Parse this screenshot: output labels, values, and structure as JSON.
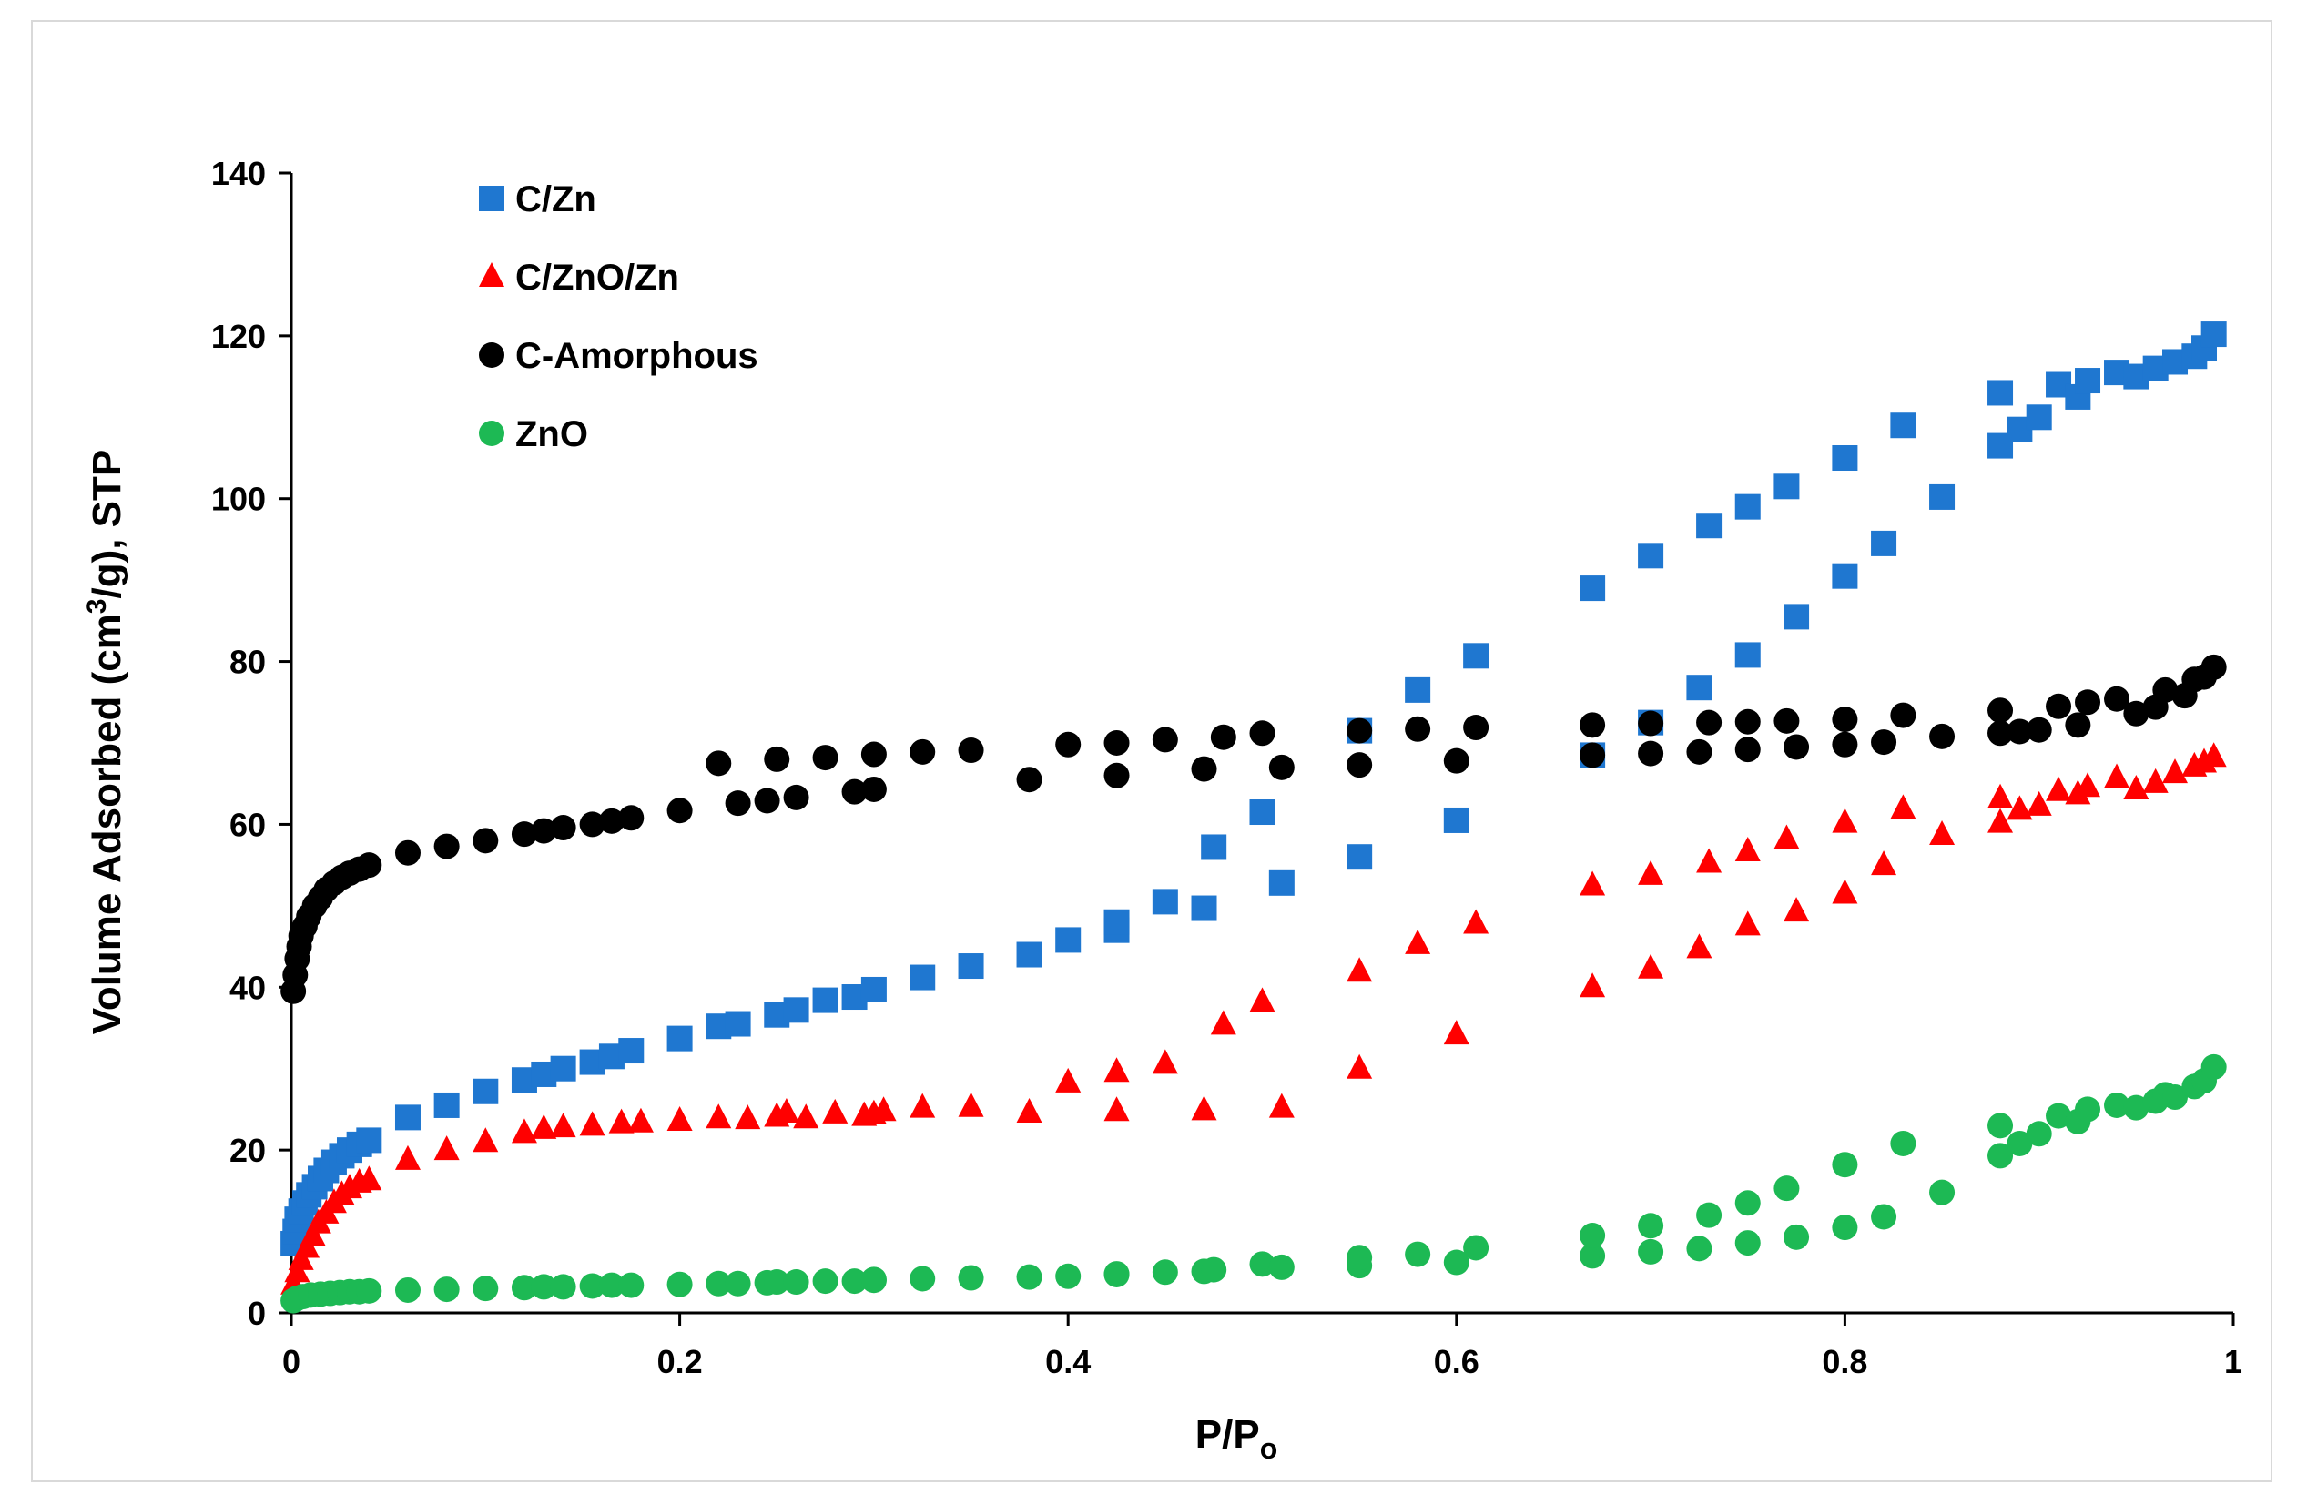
{
  "chart_data": {
    "type": "scatter",
    "title": "",
    "xlabel": {
      "main": "P/P",
      "sub": "o"
    },
    "ylabel": {
      "pre": "Volume Adsorbed (cm",
      "sup": "3",
      "post": "/g), STP"
    },
    "xlim": [
      0,
      1
    ],
    "ylim": [
      0,
      140
    ],
    "xticks": [
      0,
      0.2,
      0.4,
      0.6,
      0.8,
      1
    ],
    "xtick_labels": [
      "0",
      "0.2",
      "0.4",
      "0.6",
      "0.8",
      "1"
    ],
    "yticks": [
      0,
      20,
      40,
      60,
      80,
      100,
      120,
      140
    ],
    "ytick_labels": [
      "0",
      "20",
      "40",
      "60",
      "80",
      "100",
      "120",
      "140"
    ],
    "grid": false,
    "legend_position": "top-left",
    "series": [
      {
        "name": "C/Zn",
        "marker": "square",
        "color": "#1f77d0",
        "points": [
          [
            0.001,
            8.5
          ],
          [
            0.002,
            10
          ],
          [
            0.003,
            11.5
          ],
          [
            0.005,
            12.5
          ],
          [
            0.007,
            13.5
          ],
          [
            0.009,
            14.5
          ],
          [
            0.012,
            15.5
          ],
          [
            0.015,
            16.5
          ],
          [
            0.018,
            17.5
          ],
          [
            0.022,
            18.5
          ],
          [
            0.026,
            19.3
          ],
          [
            0.03,
            20
          ],
          [
            0.035,
            20.7
          ],
          [
            0.04,
            21.2
          ],
          [
            0.06,
            24
          ],
          [
            0.08,
            25.5
          ],
          [
            0.1,
            27.2
          ],
          [
            0.12,
            28.6
          ],
          [
            0.13,
            29.3
          ],
          [
            0.14,
            30
          ],
          [
            0.155,
            30.8
          ],
          [
            0.165,
            31.5
          ],
          [
            0.175,
            32.2
          ],
          [
            0.2,
            33.7
          ],
          [
            0.22,
            35.2
          ],
          [
            0.23,
            35.5
          ],
          [
            0.25,
            36.6
          ],
          [
            0.26,
            37.2
          ],
          [
            0.275,
            38.4
          ],
          [
            0.29,
            38.8
          ],
          [
            0.3,
            39.7
          ],
          [
            0.325,
            41.2
          ],
          [
            0.35,
            42.6
          ],
          [
            0.38,
            44
          ],
          [
            0.4,
            45.8
          ],
          [
            0.425,
            47
          ],
          [
            0.425,
            48
          ],
          [
            0.45,
            50.5
          ],
          [
            0.47,
            49.7
          ],
          [
            0.475,
            57.2
          ],
          [
            0.5,
            61.5
          ],
          [
            0.51,
            52.8
          ],
          [
            0.55,
            56
          ],
          [
            0.55,
            71.5
          ],
          [
            0.58,
            76.5
          ],
          [
            0.6,
            60.5
          ],
          [
            0.61,
            80.7
          ],
          [
            0.67,
            68.5
          ],
          [
            0.67,
            89
          ],
          [
            0.7,
            72.5
          ],
          [
            0.7,
            93
          ],
          [
            0.725,
            76.8
          ],
          [
            0.73,
            96.7
          ],
          [
            0.75,
            80.8
          ],
          [
            0.75,
            99
          ],
          [
            0.77,
            101.5
          ],
          [
            0.775,
            85.5
          ],
          [
            0.8,
            90.5
          ],
          [
            0.8,
            105
          ],
          [
            0.82,
            94.5
          ],
          [
            0.83,
            109
          ],
          [
            0.85,
            100.2
          ],
          [
            0.88,
            106.5
          ],
          [
            0.88,
            113
          ],
          [
            0.89,
            108.5
          ],
          [
            0.9,
            110
          ],
          [
            0.91,
            114
          ],
          [
            0.92,
            112.5
          ],
          [
            0.925,
            114.5
          ],
          [
            0.94,
            115.5
          ],
          [
            0.95,
            115
          ],
          [
            0.96,
            116
          ],
          [
            0.97,
            116.8
          ],
          [
            0.98,
            117.5
          ],
          [
            0.985,
            118.5
          ],
          [
            0.99,
            120.2
          ]
        ]
      },
      {
        "name": "C/ZnO/Zn",
        "marker": "triangle",
        "color": "#ff0000",
        "points": [
          [
            0.001,
            3.5
          ],
          [
            0.003,
            5
          ],
          [
            0.005,
            6.5
          ],
          [
            0.008,
            8
          ],
          [
            0.011,
            9.5
          ],
          [
            0.014,
            11
          ],
          [
            0.018,
            12.2
          ],
          [
            0.022,
            13.5
          ],
          [
            0.026,
            14.5
          ],
          [
            0.03,
            15.3
          ],
          [
            0.035,
            16
          ],
          [
            0.04,
            16.3
          ],
          [
            0.06,
            18.8
          ],
          [
            0.08,
            20
          ],
          [
            0.1,
            21
          ],
          [
            0.12,
            22.1
          ],
          [
            0.13,
            22.6
          ],
          [
            0.14,
            22.8
          ],
          [
            0.155,
            23
          ],
          [
            0.17,
            23.3
          ],
          [
            0.18,
            23.4
          ],
          [
            0.2,
            23.6
          ],
          [
            0.22,
            23.9
          ],
          [
            0.235,
            23.8
          ],
          [
            0.25,
            24.1
          ],
          [
            0.255,
            24.6
          ],
          [
            0.265,
            23.9
          ],
          [
            0.28,
            24.5
          ],
          [
            0.295,
            24.2
          ],
          [
            0.3,
            24.4
          ],
          [
            0.305,
            24.8
          ],
          [
            0.325,
            25.2
          ],
          [
            0.35,
            25.3
          ],
          [
            0.38,
            24.6
          ],
          [
            0.4,
            28.3
          ],
          [
            0.425,
            29.6
          ],
          [
            0.425,
            24.8
          ],
          [
            0.45,
            30.6
          ],
          [
            0.47,
            24.9
          ],
          [
            0.48,
            35.4
          ],
          [
            0.5,
            38.2
          ],
          [
            0.51,
            25.2
          ],
          [
            0.55,
            41.9
          ],
          [
            0.55,
            30
          ],
          [
            0.58,
            45.3
          ],
          [
            0.6,
            34.2
          ],
          [
            0.61,
            47.8
          ],
          [
            0.67,
            40
          ],
          [
            0.67,
            52.5
          ],
          [
            0.7,
            42.3
          ],
          [
            0.7,
            53.8
          ],
          [
            0.725,
            44.8
          ],
          [
            0.73,
            55.3
          ],
          [
            0.75,
            47.6
          ],
          [
            0.75,
            56.7
          ],
          [
            0.77,
            58.2
          ],
          [
            0.775,
            49.3
          ],
          [
            0.8,
            51.5
          ],
          [
            0.8,
            60.2
          ],
          [
            0.82,
            55
          ],
          [
            0.83,
            61.9
          ],
          [
            0.85,
            58.7
          ],
          [
            0.88,
            60.2
          ],
          [
            0.88,
            63.2
          ],
          [
            0.89,
            61.8
          ],
          [
            0.9,
            62.3
          ],
          [
            0.91,
            64.1
          ],
          [
            0.92,
            63.7
          ],
          [
            0.925,
            64.6
          ],
          [
            0.94,
            65.7
          ],
          [
            0.95,
            64.3
          ],
          [
            0.96,
            65.1
          ],
          [
            0.97,
            66.3
          ],
          [
            0.98,
            67.1
          ],
          [
            0.985,
            67.6
          ],
          [
            0.99,
            68.3
          ]
        ]
      },
      {
        "name": "C-Amorphous",
        "marker": "circle",
        "color": "#000000",
        "points": [
          [
            0.001,
            39.5
          ],
          [
            0.002,
            41.5
          ],
          [
            0.003,
            43.5
          ],
          [
            0.004,
            45
          ],
          [
            0.005,
            46.3
          ],
          [
            0.007,
            47.5
          ],
          [
            0.009,
            48.7
          ],
          [
            0.012,
            50
          ],
          [
            0.015,
            51
          ],
          [
            0.018,
            52
          ],
          [
            0.022,
            52.8
          ],
          [
            0.026,
            53.5
          ],
          [
            0.03,
            54
          ],
          [
            0.035,
            54.5
          ],
          [
            0.04,
            55
          ],
          [
            0.06,
            56.5
          ],
          [
            0.08,
            57.3
          ],
          [
            0.1,
            58
          ],
          [
            0.12,
            58.8
          ],
          [
            0.13,
            59.2
          ],
          [
            0.14,
            59.6
          ],
          [
            0.155,
            60
          ],
          [
            0.165,
            60.4
          ],
          [
            0.175,
            60.8
          ],
          [
            0.2,
            61.7
          ],
          [
            0.22,
            67.5
          ],
          [
            0.23,
            62.6
          ],
          [
            0.245,
            62.9
          ],
          [
            0.25,
            68
          ],
          [
            0.26,
            63.3
          ],
          [
            0.275,
            68.2
          ],
          [
            0.29,
            64
          ],
          [
            0.3,
            68.6
          ],
          [
            0.3,
            64.3
          ],
          [
            0.325,
            68.9
          ],
          [
            0.35,
            69.1
          ],
          [
            0.38,
            65.5
          ],
          [
            0.4,
            69.8
          ],
          [
            0.425,
            70
          ],
          [
            0.425,
            66
          ],
          [
            0.45,
            70.4
          ],
          [
            0.47,
            66.8
          ],
          [
            0.48,
            70.7
          ],
          [
            0.5,
            71.2
          ],
          [
            0.51,
            67
          ],
          [
            0.55,
            71.5
          ],
          [
            0.55,
            67.3
          ],
          [
            0.58,
            71.7
          ],
          [
            0.6,
            67.8
          ],
          [
            0.61,
            71.9
          ],
          [
            0.67,
            68.5
          ],
          [
            0.67,
            72.2
          ],
          [
            0.7,
            68.7
          ],
          [
            0.7,
            72.4
          ],
          [
            0.725,
            68.9
          ],
          [
            0.73,
            72.5
          ],
          [
            0.75,
            69.2
          ],
          [
            0.75,
            72.6
          ],
          [
            0.77,
            72.7
          ],
          [
            0.775,
            69.5
          ],
          [
            0.8,
            69.8
          ],
          [
            0.8,
            72.9
          ],
          [
            0.82,
            70.1
          ],
          [
            0.83,
            73.4
          ],
          [
            0.85,
            70.8
          ],
          [
            0.88,
            71.2
          ],
          [
            0.88,
            74
          ],
          [
            0.89,
            71.4
          ],
          [
            0.9,
            71.6
          ],
          [
            0.91,
            74.5
          ],
          [
            0.92,
            72.2
          ],
          [
            0.925,
            75
          ],
          [
            0.94,
            75.4
          ],
          [
            0.95,
            73.6
          ],
          [
            0.96,
            74.4
          ],
          [
            0.965,
            76.5
          ],
          [
            0.975,
            75.8
          ],
          [
            0.98,
            77.8
          ],
          [
            0.985,
            78.1
          ],
          [
            0.99,
            79.3
          ]
        ]
      },
      {
        "name": "ZnO",
        "marker": "circle",
        "color": "#1db954",
        "points": [
          [
            0.001,
            1.5
          ],
          [
            0.003,
            1.8
          ],
          [
            0.006,
            2
          ],
          [
            0.01,
            2.2
          ],
          [
            0.015,
            2.3
          ],
          [
            0.02,
            2.4
          ],
          [
            0.025,
            2.5
          ],
          [
            0.03,
            2.6
          ],
          [
            0.035,
            2.6
          ],
          [
            0.04,
            2.7
          ],
          [
            0.06,
            2.8
          ],
          [
            0.08,
            2.9
          ],
          [
            0.1,
            3
          ],
          [
            0.12,
            3.1
          ],
          [
            0.13,
            3.2
          ],
          [
            0.14,
            3.2
          ],
          [
            0.155,
            3.3
          ],
          [
            0.165,
            3.4
          ],
          [
            0.175,
            3.4
          ],
          [
            0.2,
            3.5
          ],
          [
            0.22,
            3.6
          ],
          [
            0.23,
            3.6
          ],
          [
            0.245,
            3.7
          ],
          [
            0.25,
            3.8
          ],
          [
            0.26,
            3.8
          ],
          [
            0.275,
            3.9
          ],
          [
            0.29,
            3.9
          ],
          [
            0.3,
            4
          ],
          [
            0.3,
            4.1
          ],
          [
            0.325,
            4.2
          ],
          [
            0.35,
            4.3
          ],
          [
            0.38,
            4.4
          ],
          [
            0.4,
            4.5
          ],
          [
            0.425,
            4.7
          ],
          [
            0.425,
            4.8
          ],
          [
            0.45,
            5
          ],
          [
            0.47,
            5.1
          ],
          [
            0.475,
            5.3
          ],
          [
            0.5,
            6
          ],
          [
            0.51,
            5.6
          ],
          [
            0.55,
            5.8
          ],
          [
            0.55,
            6.8
          ],
          [
            0.58,
            7.2
          ],
          [
            0.6,
            6.2
          ],
          [
            0.61,
            8
          ],
          [
            0.67,
            7
          ],
          [
            0.67,
            9.5
          ],
          [
            0.7,
            7.5
          ],
          [
            0.7,
            10.7
          ],
          [
            0.725,
            7.9
          ],
          [
            0.73,
            12
          ],
          [
            0.75,
            8.6
          ],
          [
            0.75,
            13.5
          ],
          [
            0.77,
            15.3
          ],
          [
            0.775,
            9.3
          ],
          [
            0.8,
            10.5
          ],
          [
            0.8,
            18.2
          ],
          [
            0.82,
            11.8
          ],
          [
            0.83,
            20.8
          ],
          [
            0.85,
            14.8
          ],
          [
            0.88,
            19.3
          ],
          [
            0.88,
            23
          ],
          [
            0.89,
            20.8
          ],
          [
            0.9,
            22
          ],
          [
            0.91,
            24.2
          ],
          [
            0.92,
            23.5
          ],
          [
            0.925,
            25
          ],
          [
            0.94,
            25.5
          ],
          [
            0.95,
            25.2
          ],
          [
            0.96,
            26
          ],
          [
            0.965,
            26.8
          ],
          [
            0.97,
            26.5
          ],
          [
            0.98,
            27.8
          ],
          [
            0.985,
            28.5
          ],
          [
            0.99,
            30.2
          ]
        ]
      }
    ]
  }
}
